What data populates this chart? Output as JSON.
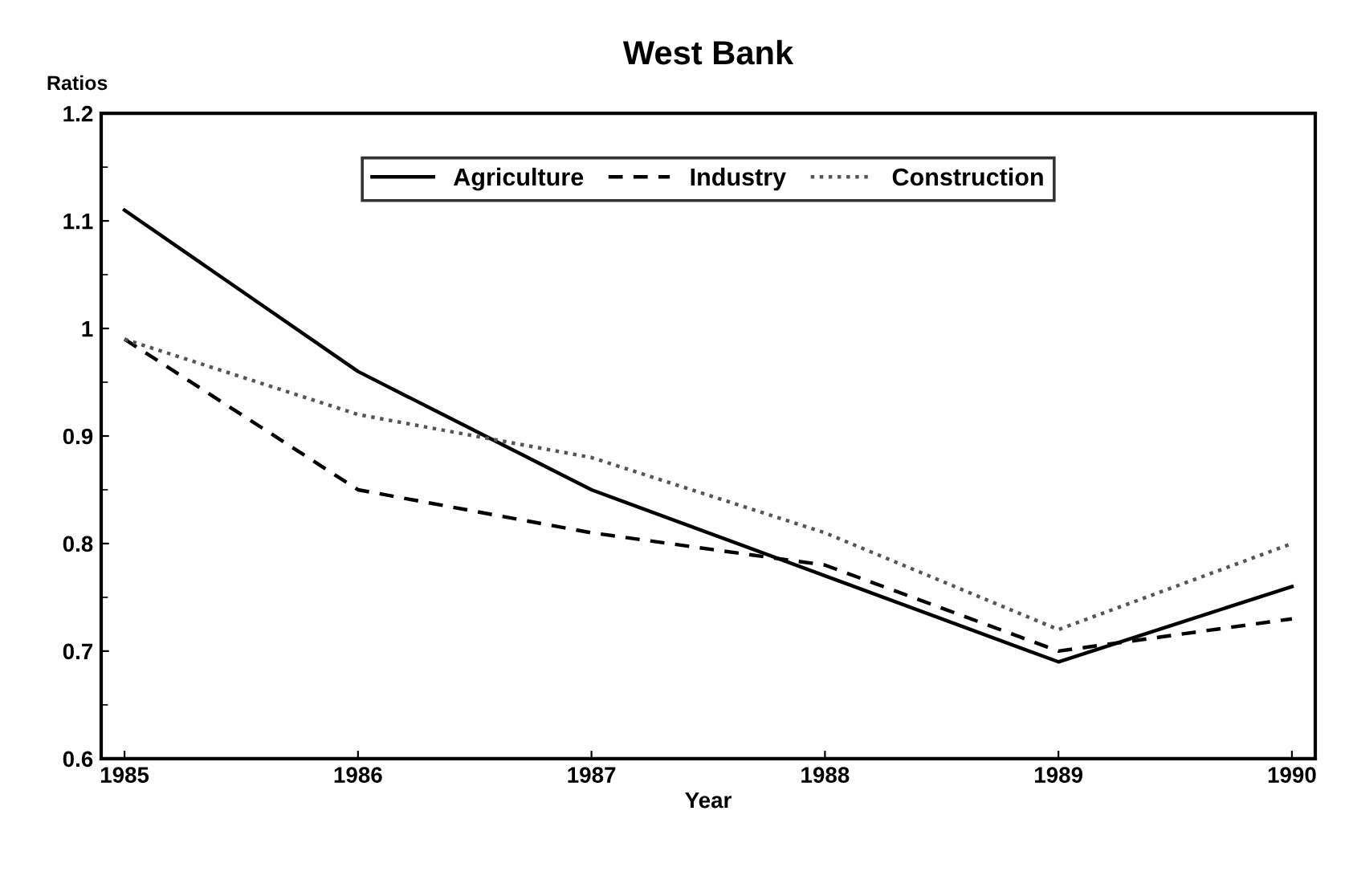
{
  "chart_data": {
    "type": "line",
    "title": "West Bank",
    "ylabel": "Ratios",
    "xlabel": "Year",
    "x": [
      1985,
      1986,
      1987,
      1988,
      1989,
      1990
    ],
    "xlim": [
      1984.9,
      1990.1
    ],
    "xticks": [
      1985,
      1986,
      1987,
      1988,
      1989,
      1990
    ],
    "ylim": [
      0.6,
      1.2
    ],
    "yticks": [
      0.6,
      0.7,
      0.8,
      0.9,
      1,
      1.1,
      1.2
    ],
    "grid": false,
    "legend": "top",
    "marker": "none",
    "series": [
      {
        "name": "Agriculture",
        "color": "#000000",
        "line_style": "solid",
        "values": [
          1.11,
          0.96,
          0.85,
          0.77,
          0.69,
          0.76
        ]
      },
      {
        "name": "Industry",
        "color": "#000000",
        "line_style": "dashed",
        "values": [
          0.99,
          0.85,
          0.81,
          0.78,
          0.7,
          0.73
        ]
      },
      {
        "name": "Construction",
        "color": "#555555",
        "line_style": "dotted",
        "values": [
          0.99,
          0.92,
          0.88,
          0.81,
          0.72,
          0.8
        ]
      }
    ]
  }
}
